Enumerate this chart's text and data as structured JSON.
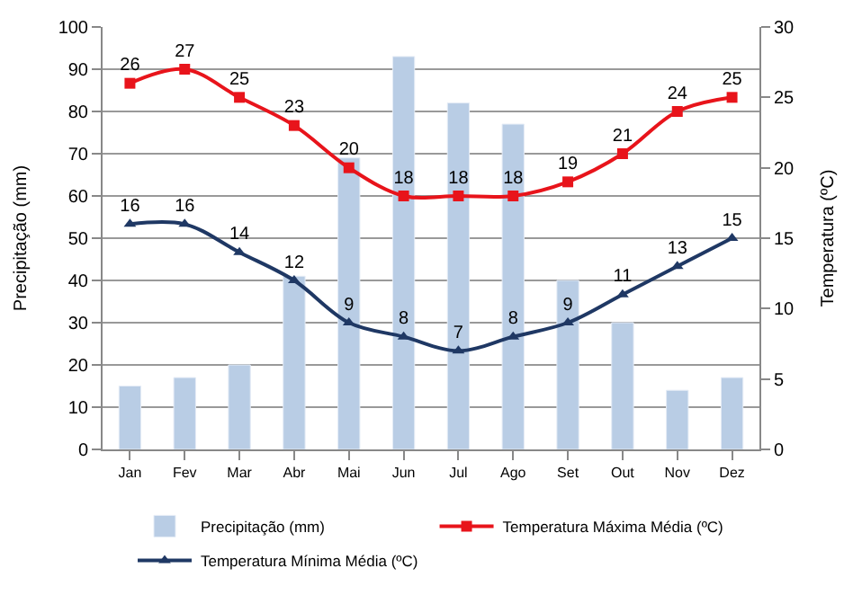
{
  "chart_data": {
    "type": "bar",
    "categories": [
      "Jan",
      "Fev",
      "Mar",
      "Abr",
      "Mai",
      "Jun",
      "Jul",
      "Ago",
      "Set",
      "Out",
      "Nov",
      "Dez"
    ],
    "ylabel": "Precipitação (mm)",
    "y2label": "Temperatura (ºC)",
    "ylim": [
      0,
      100
    ],
    "yticks": [
      0,
      10,
      20,
      30,
      40,
      50,
      60,
      70,
      80,
      90,
      100
    ],
    "y2lim": [
      0,
      30
    ],
    "y2ticks": [
      0,
      5,
      10,
      15,
      20,
      25,
      30
    ],
    "grid": "y",
    "legend": "bottom",
    "series": [
      {
        "name": "Precipitação (mm)",
        "color": "#b9cde5",
        "values": [
          15,
          17,
          20,
          41,
          69,
          93,
          82,
          77,
          40,
          30,
          14,
          17
        ]
      },
      {
        "name": "Temperatura Máxima Média (ºC)",
        "type": "line",
        "axis": "y2",
        "color": "#e8141b",
        "marker": "square",
        "data_labels": true,
        "values": [
          26,
          27,
          25,
          23,
          20,
          18,
          18,
          18,
          19,
          21,
          24,
          25
        ]
      },
      {
        "name": "Temperatura Mínima Média (ºC)",
        "type": "line",
        "axis": "y2",
        "color": "#1f3864",
        "marker": "triangle",
        "data_labels": true,
        "values": [
          16,
          16,
          14,
          12,
          9,
          8,
          7,
          8,
          9,
          11,
          13,
          15
        ]
      }
    ]
  }
}
